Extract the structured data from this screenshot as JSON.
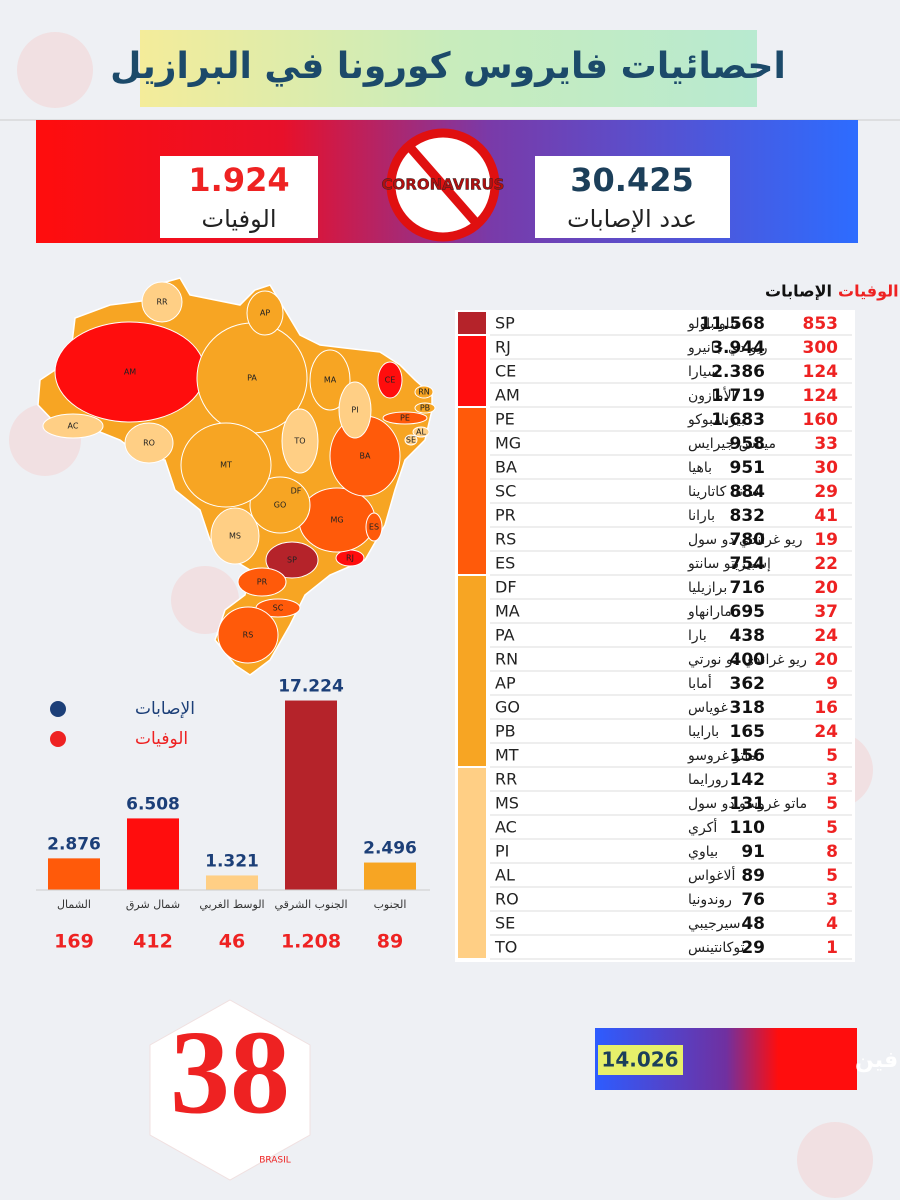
{
  "header": {
    "title": "احصائيات فايروس كورونا في البرازيل"
  },
  "summary": {
    "deaths": {
      "value": "1.924",
      "label": "الوفيات"
    },
    "cases": {
      "value": "30.425",
      "label": "عدد الإصابات"
    },
    "badge": "CORONAVIRUS"
  },
  "table": {
    "headers": {
      "deaths": "الوفيات",
      "cases": "الإصابات"
    },
    "rows": [
      {
        "code": "SP",
        "name": "ساو باولو",
        "cases": "11.568",
        "deaths": "853",
        "color": "#b5232a"
      },
      {
        "code": "RJ",
        "name": "ريو دي جانيرو",
        "cases": "3.944",
        "deaths": "300",
        "color": "#ff0d0d"
      },
      {
        "code": "CE",
        "name": "سيارا",
        "cases": "2.386",
        "deaths": "124",
        "color": "#ff0d0d"
      },
      {
        "code": "AM",
        "name": "الأمازون",
        "cases": "1.719",
        "deaths": "124",
        "color": "#ff0d0d"
      },
      {
        "code": "PE",
        "name": "بيرنامبوكو",
        "cases": "1.683",
        "deaths": "160",
        "color": "#ff5a0a"
      },
      {
        "code": "MG",
        "name": "ميناس جيرايس",
        "cases": "958",
        "deaths": "33",
        "color": "#ff5a0a"
      },
      {
        "code": "BA",
        "name": "باهيا",
        "cases": "951",
        "deaths": "30",
        "color": "#ff5a0a"
      },
      {
        "code": "SC",
        "name": "سانتا كاتارينا",
        "cases": "884",
        "deaths": "29",
        "color": "#ff5a0a"
      },
      {
        "code": "PR",
        "name": "بارانا",
        "cases": "832",
        "deaths": "41",
        "color": "#ff5a0a"
      },
      {
        "code": "RS",
        "name": "ريو غراندي دو سول",
        "cases": "780",
        "deaths": "19",
        "color": "#ff5a0a"
      },
      {
        "code": "ES",
        "name": "إسبيريتو سانتو",
        "cases": "754",
        "deaths": "22",
        "color": "#ff5a0a"
      },
      {
        "code": "DF",
        "name": "برازيليا",
        "cases": "716",
        "deaths": "20",
        "color": "#f7a523"
      },
      {
        "code": "MA",
        "name": "مارانهاو",
        "cases": "695",
        "deaths": "37",
        "color": "#f7a523"
      },
      {
        "code": "PA",
        "name": "بارا",
        "cases": "438",
        "deaths": "24",
        "color": "#f7a523"
      },
      {
        "code": "RN",
        "name": "ريو غراندي دو نورتي",
        "cases": "400",
        "deaths": "20",
        "color": "#f7a523"
      },
      {
        "code": "AP",
        "name": "أمابا",
        "cases": "362",
        "deaths": "9",
        "color": "#f7a523"
      },
      {
        "code": "GO",
        "name": "غوياس",
        "cases": "318",
        "deaths": "16",
        "color": "#f7a523"
      },
      {
        "code": "PB",
        "name": "بارايبا",
        "cases": "165",
        "deaths": "24",
        "color": "#f7a523"
      },
      {
        "code": "MT",
        "name": "ماتو غروسو",
        "cases": "156",
        "deaths": "5",
        "color": "#f7a523"
      },
      {
        "code": "RR",
        "name": "رورايما",
        "cases": "142",
        "deaths": "3",
        "color": "#ffcf85"
      },
      {
        "code": "MS",
        "name": "ماتو غروسو دو سول",
        "cases": "131",
        "deaths": "5",
        "color": "#ffcf85"
      },
      {
        "code": "AC",
        "name": "أكري",
        "cases": "110",
        "deaths": "5",
        "color": "#ffcf85"
      },
      {
        "code": "PI",
        "name": "بياوي",
        "cases": "91",
        "deaths": "8",
        "color": "#ffcf85"
      },
      {
        "code": "AL",
        "name": "ألاغواس",
        "cases": "89",
        "deaths": "5",
        "color": "#ffcf85"
      },
      {
        "code": "RO",
        "name": "روندونيا",
        "cases": "76",
        "deaths": "3",
        "color": "#ffcf85"
      },
      {
        "code": "SE",
        "name": "سيرجيبي",
        "cases": "48",
        "deaths": "4",
        "color": "#ffcf85"
      },
      {
        "code": "TO",
        "name": "توكانتينس",
        "cases": "29",
        "deaths": "1",
        "color": "#ffcf85"
      }
    ]
  },
  "chart_data": {
    "type": "bar",
    "categories": [
      "الشمال",
      "شمال شرق",
      "الوسط الغربي",
      "الجنوب الشرقي",
      "الجنوب"
    ],
    "series": [
      {
        "name": "الإصابات",
        "color": "#1c3f78",
        "values": [
          2876,
          6508,
          1321,
          17224,
          2496
        ],
        "value_labels": [
          "2.876",
          "6.508",
          "1.321",
          "17.224",
          "2.496"
        ],
        "bar_colors": [
          "#ff5a0a",
          "#ff0d0d",
          "#ffcf85",
          "#b5232a",
          "#f7a523"
        ]
      },
      {
        "name": "الوفيات",
        "color": "#ee2222",
        "values": [
          169,
          412,
          46,
          1208,
          89
        ],
        "value_labels": [
          "169",
          "412",
          "46",
          "1.208",
          "89"
        ]
      }
    ]
  },
  "recovered": {
    "label": "عدد المتعافين",
    "value": "14.026"
  },
  "logo": {
    "text": "38",
    "sub": "BRASIL"
  }
}
